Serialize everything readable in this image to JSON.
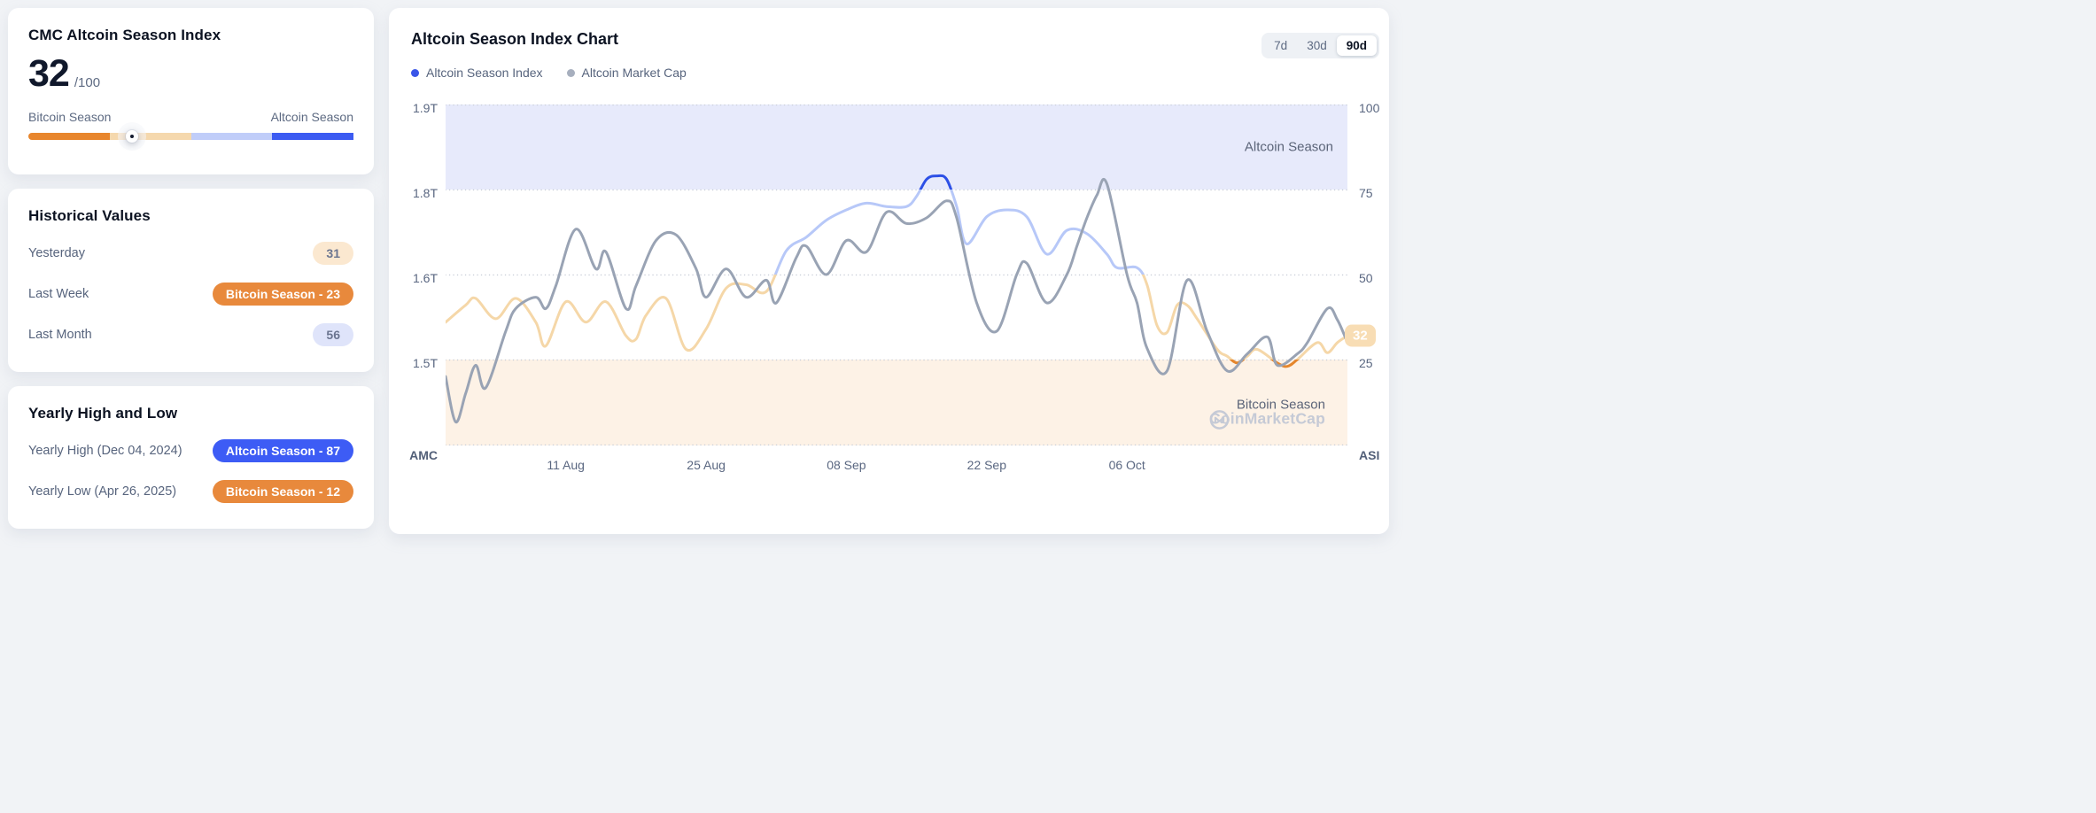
{
  "index_card": {
    "title": "CMC Altcoin Season Index",
    "value": "32",
    "value_max": "/100",
    "left_label": "Bitcoin Season",
    "right_label": "Altcoin Season",
    "slider_value_pct": 32,
    "slider_segments": [
      {
        "name": "bitcoin-season",
        "color": "#e8862d",
        "width_pct": 25
      },
      {
        "name": "bitcoin-lean",
        "color": "#f5d8ad",
        "width_pct": 25
      },
      {
        "name": "altcoin-lean",
        "color": "#c0cdf9",
        "width_pct": 25
      },
      {
        "name": "altcoin-season",
        "color": "#3c5bf2",
        "width_pct": 25
      }
    ]
  },
  "historical_card": {
    "title": "Historical Values",
    "rows": [
      {
        "label": "Yesterday",
        "badge": "31",
        "badge_style": "peach"
      },
      {
        "label": "Last Week",
        "badge": "Bitcoin Season - 23",
        "badge_style": "orange"
      },
      {
        "label": "Last Month",
        "badge": "56",
        "badge_style": "lavender"
      }
    ]
  },
  "yearly_card": {
    "title": "Yearly High and Low",
    "rows": [
      {
        "label": "Yearly High (Dec 04, 2024)",
        "badge": "Altcoin Season - 87",
        "badge_style": "blue"
      },
      {
        "label": "Yearly Low (Apr 26, 2025)",
        "badge": "Bitcoin Season - 12",
        "badge_style": "orange"
      }
    ]
  },
  "chart_card": {
    "title": "Altcoin Season Index Chart",
    "legend": [
      {
        "label": "Altcoin Season Index",
        "color": "#3a56e8"
      },
      {
        "label": "Altcoin Market Cap",
        "color": "#a7afbe"
      }
    ],
    "ranges": [
      {
        "label": "7d",
        "active": false
      },
      {
        "label": "30d",
        "active": false
      },
      {
        "label": "90d",
        "active": true
      }
    ],
    "current_badge": "32",
    "watermark_text": "CoinMarketCap"
  },
  "chart_data": {
    "type": "line",
    "selected_range": "90d",
    "current_value": 32,
    "grid": "dotted horizontal",
    "grid_color": "#c9ced8",
    "legend_position": "top-left",
    "x_axis": {
      "tick_labels": [
        "11 Aug",
        "25 Aug",
        "08 Sep",
        "22 Sep",
        "06 Oct"
      ],
      "tick_days": [
        12,
        26,
        40,
        54,
        68
      ],
      "range_days": [
        0,
        90
      ]
    },
    "left_axis": {
      "title": "AMC",
      "tick_labels": [
        "1.9T",
        "1.8T",
        "1.6T",
        "1.5T"
      ],
      "tick_values": [
        1.9,
        1.75,
        1.6,
        1.45
      ],
      "unit": "altcoin market cap, USD trillions"
    },
    "right_axis": {
      "title": "ASI",
      "tick_labels": [
        "100",
        "75",
        "50",
        "25"
      ],
      "tick_values": [
        100,
        75,
        50,
        25
      ],
      "unit": "altcoin season index 0-100"
    },
    "zones": {
      "altcoin_season": {
        "label": "Altcoin Season",
        "min_value": 75,
        "fill": "#e7eafb"
      },
      "bitcoin_season": {
        "label": "Bitcoin Season",
        "max_value": 25,
        "fill": "#fdf2e6"
      }
    },
    "series": [
      {
        "name": "Altcoin Season Index",
        "axis": "right",
        "zone_colors": {
          "altcoin_season": "#2d50e6",
          "upper_mid": "#b7c8f8",
          "lower_mid": "#f5d7a8",
          "bitcoin_season": "#e5862c"
        },
        "x": [
          0,
          2,
          3,
          5,
          7,
          9,
          10,
          12,
          14,
          16,
          18,
          19,
          20,
          22,
          24,
          26,
          28,
          30,
          32,
          34,
          36,
          38,
          40,
          42,
          44,
          46,
          47,
          48,
          49,
          50,
          51,
          52,
          54,
          56,
          58,
          60,
          62,
          64,
          66,
          67,
          69,
          70,
          71,
          72,
          73,
          74,
          75,
          77,
          78,
          79,
          80,
          81,
          83,
          84,
          85,
          87,
          88,
          89,
          90
        ],
        "values": [
          36,
          41,
          43,
          37,
          43,
          36,
          29,
          42,
          36,
          42,
          32,
          31,
          38,
          43,
          28,
          34,
          46,
          47,
          45,
          57,
          61,
          66,
          69,
          71,
          70,
          70,
          73,
          78,
          79,
          78,
          70,
          59,
          67,
          69,
          67,
          56,
          63,
          62,
          56,
          52,
          52,
          47,
          35,
          33,
          41,
          41,
          37,
          28,
          26,
          24,
          26,
          28,
          24,
          23,
          25,
          30,
          27,
          30,
          32
        ]
      },
      {
        "name": "Altcoin Market Cap",
        "axis": "left",
        "color": "#99a3b4",
        "x": [
          0,
          1,
          2,
          3,
          4,
          6,
          7,
          9,
          10,
          11,
          13,
          15,
          16,
          18,
          19,
          21,
          23,
          25,
          26,
          28,
          30,
          32,
          33,
          35,
          36,
          38,
          40,
          42,
          44,
          46,
          48,
          50,
          51,
          53,
          55,
          57,
          58,
          60,
          62,
          63,
          64,
          65,
          66,
          68,
          69,
          70,
          72,
          74,
          76,
          78,
          80,
          82,
          83,
          85,
          86,
          88,
          89,
          90
        ],
        "values": [
          1.42,
          1.34,
          1.39,
          1.44,
          1.4,
          1.5,
          1.54,
          1.56,
          1.54,
          1.58,
          1.68,
          1.61,
          1.64,
          1.54,
          1.58,
          1.66,
          1.67,
          1.61,
          1.56,
          1.61,
          1.56,
          1.59,
          1.55,
          1.63,
          1.65,
          1.6,
          1.66,
          1.64,
          1.71,
          1.69,
          1.7,
          1.73,
          1.7,
          1.55,
          1.5,
          1.6,
          1.62,
          1.55,
          1.6,
          1.65,
          1.7,
          1.74,
          1.76,
          1.6,
          1.55,
          1.47,
          1.43,
          1.59,
          1.5,
          1.43,
          1.46,
          1.49,
          1.44,
          1.46,
          1.48,
          1.54,
          1.52,
          1.48
        ]
      }
    ]
  }
}
